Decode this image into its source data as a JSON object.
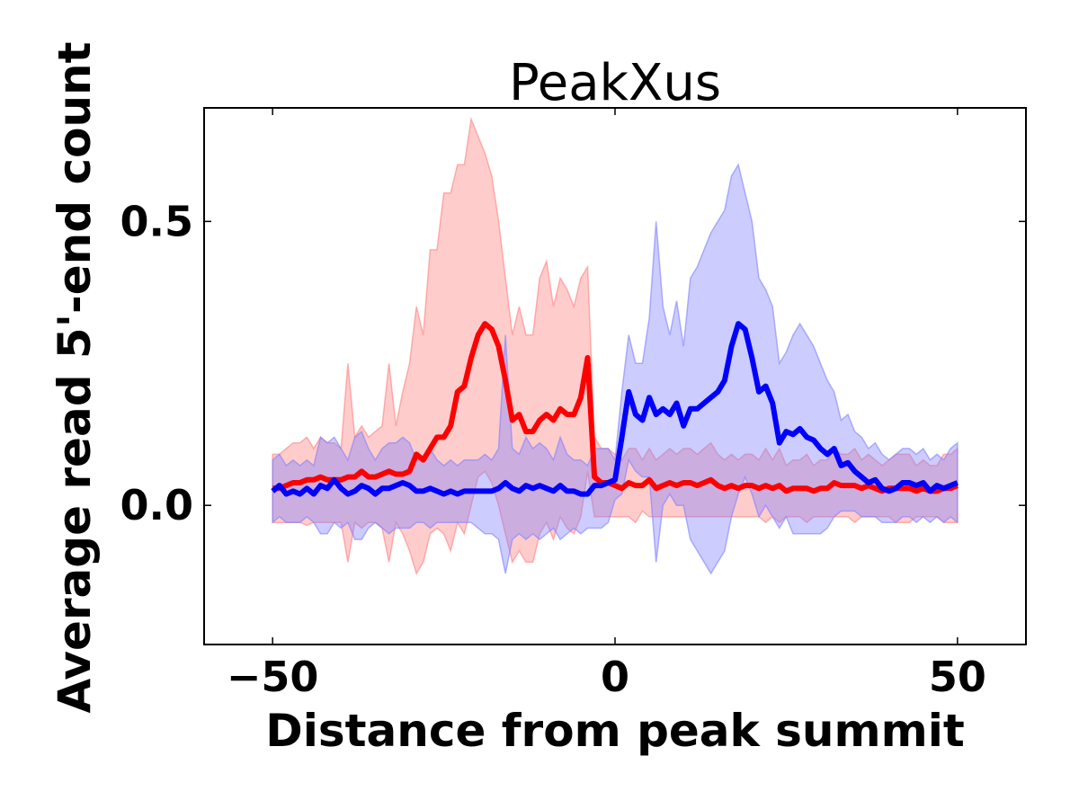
{
  "chart_data": {
    "type": "line",
    "title": "PeakXus",
    "xlabel": "Distance from peak summit",
    "ylabel": "Average read 5'-end count",
    "xlim": [
      -60,
      60
    ],
    "ylim": [
      -0.245,
      0.7
    ],
    "xticks": [
      -50,
      0,
      50
    ],
    "xtick_labels": [
      "−50",
      "0",
      "50"
    ],
    "yticks": [
      0.0,
      0.5
    ],
    "ytick_labels": [
      "0.0",
      "0.5"
    ],
    "grid": false,
    "legend": "none",
    "colors": {
      "red_line": "#ff0000",
      "red_band": "#ff8080",
      "blue_line": "#0000ff",
      "blue_band": "#8080ff"
    },
    "x": [
      -50,
      -49,
      -48,
      -47,
      -46,
      -45,
      -44,
      -43,
      -42,
      -41,
      -40,
      -39,
      -38,
      -37,
      -36,
      -35,
      -34,
      -33,
      -32,
      -31,
      -30,
      -29,
      -28,
      -27,
      -26,
      -25,
      -24,
      -23,
      -22,
      -21,
      -20,
      -19,
      -18,
      -17,
      -16,
      -15,
      -14,
      -13,
      -12,
      -11,
      -10,
      -9,
      -8,
      -7,
      -6,
      -5,
      -4,
      -3,
      -2,
      -1,
      0,
      1,
      2,
      3,
      4,
      5,
      6,
      7,
      8,
      9,
      10,
      11,
      12,
      13,
      14,
      15,
      16,
      17,
      18,
      19,
      20,
      21,
      22,
      23,
      24,
      25,
      26,
      27,
      28,
      29,
      30,
      31,
      32,
      33,
      34,
      35,
      36,
      37,
      38,
      39,
      40,
      41,
      42,
      43,
      44,
      45,
      46,
      47,
      48,
      49,
      50
    ],
    "series": [
      {
        "values": [
          0.03,
          0.03,
          0.035,
          0.04,
          0.04,
          0.045,
          0.045,
          0.05,
          0.045,
          0.045,
          0.045,
          0.05,
          0.05,
          0.06,
          0.05,
          0.05,
          0.055,
          0.06,
          0.055,
          0.055,
          0.06,
          0.09,
          0.08,
          0.1,
          0.12,
          0.12,
          0.14,
          0.2,
          0.21,
          0.26,
          0.3,
          0.32,
          0.31,
          0.28,
          0.22,
          0.15,
          0.16,
          0.13,
          0.13,
          0.15,
          0.16,
          0.15,
          0.17,
          0.16,
          0.16,
          0.19,
          0.26,
          0.05,
          0.04,
          0.04,
          0.035,
          0.03,
          0.04,
          0.035,
          0.035,
          0.045,
          0.03,
          0.035,
          0.04,
          0.035,
          0.04,
          0.04,
          0.035,
          0.04,
          0.045,
          0.035,
          0.03,
          0.035,
          0.03,
          0.035,
          0.035,
          0.03,
          0.035,
          0.03,
          0.035,
          0.025,
          0.03,
          0.03,
          0.03,
          0.025,
          0.03,
          0.03,
          0.04,
          0.035,
          0.035,
          0.035,
          0.03,
          0.035,
          0.03,
          0.025,
          0.03,
          0.03,
          0.03,
          0.03,
          0.025,
          0.03,
          0.025,
          0.025,
          0.03,
          0.03,
          0.035
        ],
        "upper": [
          0.09,
          0.09,
          0.1,
          0.11,
          0.11,
          0.12,
          0.1,
          0.12,
          0.11,
          0.11,
          0.1,
          0.25,
          0.12,
          0.14,
          0.12,
          0.13,
          0.14,
          0.25,
          0.14,
          0.2,
          0.25,
          0.35,
          0.3,
          0.45,
          0.45,
          0.55,
          0.55,
          0.6,
          0.6,
          0.68,
          0.65,
          0.62,
          0.58,
          0.5,
          0.4,
          0.3,
          0.35,
          0.3,
          0.3,
          0.4,
          0.43,
          0.35,
          0.4,
          0.38,
          0.35,
          0.4,
          0.42,
          0.12,
          0.1,
          0.1,
          0.09,
          0.08,
          0.1,
          0.1,
          0.08,
          0.1,
          0.08,
          0.09,
          0.1,
          0.09,
          0.1,
          0.1,
          0.09,
          0.1,
          0.11,
          0.09,
          0.08,
          0.09,
          0.08,
          0.09,
          0.09,
          0.08,
          0.1,
          0.08,
          0.1,
          0.07,
          0.08,
          0.08,
          0.09,
          0.07,
          0.08,
          0.08,
          0.1,
          0.09,
          0.09,
          0.1,
          0.08,
          0.09,
          0.08,
          0.07,
          0.08,
          0.09,
          0.09,
          0.09,
          0.07,
          0.08,
          0.07,
          0.07,
          0.09,
          0.09,
          0.1
        ],
        "lower": [
          -0.03,
          -0.03,
          -0.03,
          -0.03,
          -0.03,
          -0.035,
          -0.03,
          -0.03,
          -0.03,
          -0.03,
          -0.03,
          -0.1,
          -0.03,
          -0.04,
          -0.03,
          -0.03,
          -0.04,
          -0.1,
          -0.03,
          -0.05,
          -0.08,
          -0.12,
          -0.1,
          -0.05,
          -0.04,
          -0.05,
          -0.08,
          -0.03,
          -0.05,
          0.0,
          0.05,
          0.06,
          0.04,
          0.0,
          -0.05,
          -0.1,
          -0.08,
          -0.1,
          -0.1,
          -0.05,
          -0.03,
          -0.06,
          -0.02,
          -0.04,
          -0.05,
          -0.02,
          0.06,
          -0.02,
          -0.02,
          -0.02,
          -0.02,
          -0.02,
          -0.02,
          -0.03,
          -0.01,
          -0.02,
          -0.02,
          -0.02,
          -0.02,
          -0.02,
          -0.02,
          -0.02,
          -0.02,
          -0.02,
          -0.02,
          -0.02,
          -0.02,
          -0.02,
          -0.02,
          -0.02,
          -0.02,
          -0.02,
          -0.03,
          -0.02,
          -0.03,
          -0.02,
          -0.02,
          -0.02,
          -0.03,
          -0.02,
          -0.02,
          -0.02,
          -0.02,
          -0.02,
          -0.02,
          -0.03,
          -0.02,
          -0.02,
          -0.02,
          -0.02,
          -0.02,
          -0.03,
          -0.03,
          -0.03,
          -0.02,
          -0.02,
          -0.02,
          -0.02,
          -0.03,
          -0.03,
          -0.03
        ]
      },
      {
        "values": [
          0.025,
          0.035,
          0.02,
          0.025,
          0.02,
          0.03,
          0.02,
          0.035,
          0.03,
          0.045,
          0.03,
          0.02,
          0.025,
          0.035,
          0.03,
          0.02,
          0.03,
          0.03,
          0.035,
          0.04,
          0.035,
          0.025,
          0.025,
          0.03,
          0.025,
          0.02,
          0.025,
          0.02,
          0.025,
          0.025,
          0.025,
          0.025,
          0.025,
          0.03,
          0.04,
          0.03,
          0.025,
          0.035,
          0.03,
          0.035,
          0.03,
          0.025,
          0.035,
          0.025,
          0.025,
          0.02,
          0.02,
          0.035,
          0.035,
          0.04,
          0.045,
          0.12,
          0.2,
          0.16,
          0.15,
          0.19,
          0.16,
          0.17,
          0.16,
          0.18,
          0.14,
          0.17,
          0.17,
          0.18,
          0.19,
          0.2,
          0.22,
          0.28,
          0.32,
          0.31,
          0.26,
          0.2,
          0.21,
          0.18,
          0.11,
          0.13,
          0.125,
          0.135,
          0.12,
          0.115,
          0.1,
          0.09,
          0.1,
          0.07,
          0.075,
          0.06,
          0.05,
          0.04,
          0.045,
          0.03,
          0.025,
          0.03,
          0.04,
          0.04,
          0.035,
          0.04,
          0.025,
          0.035,
          0.03,
          0.035,
          0.04
        ],
        "upper": [
          0.08,
          0.09,
          0.07,
          0.08,
          0.07,
          0.08,
          0.07,
          0.12,
          0.11,
          0.12,
          0.1,
          0.08,
          0.12,
          0.13,
          0.1,
          0.08,
          0.1,
          0.11,
          0.11,
          0.12,
          0.11,
          0.08,
          0.08,
          0.1,
          0.08,
          0.07,
          0.08,
          0.07,
          0.08,
          0.08,
          0.08,
          0.09,
          0.08,
          0.1,
          0.3,
          0.1,
          0.09,
          0.12,
          0.1,
          0.11,
          0.1,
          0.08,
          0.12,
          0.09,
          0.08,
          0.08,
          0.07,
          0.1,
          0.1,
          0.1,
          0.08,
          0.2,
          0.3,
          0.25,
          0.25,
          0.33,
          0.5,
          0.35,
          0.3,
          0.36,
          0.28,
          0.4,
          0.42,
          0.45,
          0.48,
          0.5,
          0.52,
          0.58,
          0.6,
          0.55,
          0.5,
          0.4,
          0.38,
          0.35,
          0.25,
          0.27,
          0.3,
          0.32,
          0.3,
          0.28,
          0.25,
          0.22,
          0.2,
          0.15,
          0.16,
          0.13,
          0.12,
          0.1,
          0.11,
          0.09,
          0.08,
          0.09,
          0.1,
          0.1,
          0.09,
          0.1,
          0.08,
          0.09,
          0.08,
          0.1,
          0.11
        ],
        "lower": [
          -0.03,
          -0.02,
          -0.03,
          -0.03,
          -0.03,
          -0.02,
          -0.03,
          -0.05,
          -0.05,
          -0.03,
          -0.04,
          -0.03,
          -0.06,
          -0.06,
          -0.04,
          -0.03,
          -0.04,
          -0.05,
          -0.04,
          -0.04,
          -0.04,
          -0.03,
          -0.03,
          -0.04,
          -0.03,
          -0.03,
          -0.03,
          -0.03,
          -0.03,
          -0.03,
          -0.04,
          -0.05,
          -0.05,
          -0.06,
          -0.12,
          -0.06,
          -0.05,
          -0.06,
          -0.05,
          -0.06,
          -0.05,
          -0.04,
          -0.06,
          -0.05,
          -0.04,
          -0.05,
          -0.04,
          -0.04,
          -0.04,
          -0.03,
          0.01,
          0.02,
          0.08,
          0.06,
          0.05,
          0.05,
          -0.1,
          0.0,
          0.02,
          0.0,
          0.0,
          -0.06,
          -0.08,
          -0.1,
          -0.12,
          -0.1,
          -0.08,
          -0.02,
          0.02,
          0.05,
          0.02,
          -0.02,
          0.0,
          -0.02,
          -0.04,
          -0.02,
          -0.05,
          -0.05,
          -0.05,
          -0.05,
          -0.05,
          -0.04,
          -0.02,
          -0.01,
          -0.01,
          -0.01,
          -0.02,
          -0.02,
          -0.02,
          -0.03,
          -0.03,
          -0.03,
          -0.02,
          -0.02,
          -0.03,
          -0.02,
          -0.03,
          -0.02,
          -0.03,
          -0.02,
          -0.03
        ]
      }
    ]
  }
}
